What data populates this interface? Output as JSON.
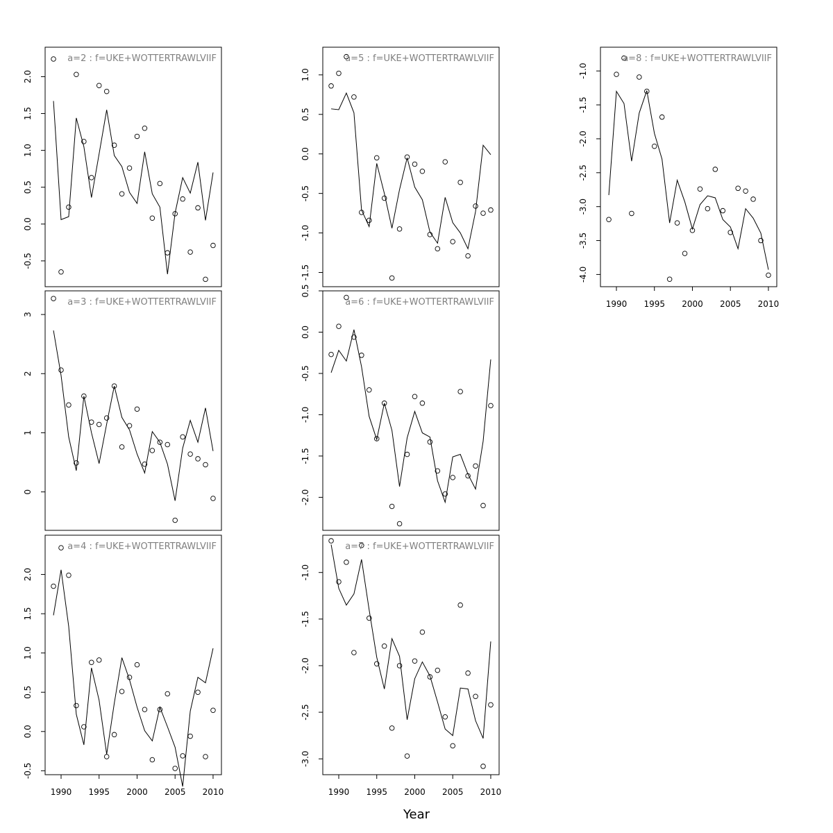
{
  "figure": {
    "xlabel": "Year"
  },
  "chart_data": [
    {
      "type": "line",
      "title": "a=2 : f=UKE+WOTTERTRAWLVIIF",
      "x": [
        1989,
        1990,
        1991,
        1992,
        1993,
        1994,
        1995,
        1996,
        1997,
        1998,
        1999,
        2000,
        2001,
        2002,
        2003,
        2004,
        2005,
        2006,
        2007,
        2008,
        2009,
        2010
      ],
      "series": [
        {
          "values": [
            1.67,
            0.06,
            0.1,
            1.44,
            1.05,
            0.36,
            0.95,
            1.55,
            0.93,
            0.78,
            0.43,
            0.28,
            0.98,
            0.41,
            0.23,
            -0.68,
            0.15,
            0.63,
            0.42,
            0.84,
            0.05,
            0.7
          ]
        },
        {
          "values": [
            2.24,
            -0.65,
            0.23,
            2.03,
            1.12,
            0.63,
            1.88,
            1.8,
            1.07,
            0.41,
            0.76,
            1.19,
            1.3,
            0.08,
            0.55,
            -0.39,
            0.14,
            0.34,
            -0.38,
            0.22,
            -0.75,
            -0.29
          ]
        }
      ],
      "ylim": [
        -0.85,
        2.4
      ],
      "yticks": [
        "-0.5",
        "0.0",
        "0.5",
        "1.0",
        "1.5",
        "2.0"
      ],
      "xticks": [],
      "xlabel": "",
      "ylabel": ""
    },
    {
      "type": "line",
      "title": "a=3 : f=UKE+WOTTERTRAWLVIIF",
      "x": [
        1989,
        1990,
        1991,
        1992,
        1993,
        1994,
        1995,
        1996,
        1997,
        1998,
        1999,
        2000,
        2001,
        2002,
        2003,
        2004,
        2005,
        2006,
        2007,
        2008,
        2009,
        2010
      ],
      "series": [
        {
          "values": [
            2.73,
            1.97,
            0.93,
            0.36,
            1.62,
            1.0,
            0.48,
            1.15,
            1.79,
            1.26,
            1.05,
            0.64,
            0.32,
            1.02,
            0.84,
            0.47,
            -0.15,
            0.74,
            1.21,
            0.84,
            1.42,
            0.69
          ]
        },
        {
          "values": [
            3.27,
            2.06,
            1.47,
            0.49,
            1.62,
            1.18,
            1.14,
            1.25,
            1.79,
            0.76,
            1.12,
            1.4,
            0.47,
            0.7,
            0.84,
            0.8,
            -0.48,
            0.93,
            0.64,
            0.56,
            0.46,
            -0.11
          ]
        }
      ],
      "ylim": [
        -0.65,
        3.4
      ],
      "yticks": [
        "0",
        "1",
        "2",
        "3"
      ],
      "xticks": [],
      "xlabel": "",
      "ylabel": ""
    },
    {
      "type": "line",
      "title": "a=4 : f=UKE+WOTTERTRAWLVIIF",
      "x": [
        1989,
        1990,
        1991,
        1992,
        1993,
        1994,
        1995,
        1996,
        1997,
        1998,
        1999,
        2000,
        2001,
        2002,
        2003,
        2004,
        2005,
        2006,
        2007,
        2008,
        2009,
        2010
      ],
      "series": [
        {
          "values": [
            1.48,
            2.06,
            1.34,
            0.22,
            -0.17,
            0.81,
            0.4,
            -0.29,
            0.36,
            0.94,
            0.66,
            0.31,
            0.01,
            -0.12,
            0.31,
            0.06,
            -0.2,
            -0.7,
            0.26,
            0.69,
            0.62,
            1.06
          ]
        },
        {
          "values": [
            1.85,
            2.34,
            1.99,
            0.33,
            0.06,
            0.88,
            0.91,
            -0.32,
            -0.04,
            0.51,
            0.69,
            0.85,
            0.28,
            -0.36,
            0.28,
            0.48,
            -0.47,
            -0.31,
            -0.06,
            0.5,
            -0.32,
            0.27
          ]
        }
      ],
      "ylim": [
        -0.55,
        2.5
      ],
      "yticks": [
        "-0.5",
        "0.0",
        "0.5",
        "1.0",
        "1.5",
        "2.0"
      ],
      "xticks": [
        "1990",
        "1995",
        "2000",
        "2005",
        "2010"
      ],
      "xlabel": "",
      "ylabel": ""
    },
    {
      "type": "line",
      "title": "a=5 : f=UKE+WOTTERTRAWLVIIF",
      "x": [
        1989,
        1990,
        1991,
        1992,
        1993,
        1994,
        1995,
        1996,
        1997,
        1998,
        1999,
        2000,
        2001,
        2002,
        2003,
        2004,
        2005,
        2006,
        2007,
        2008,
        2009,
        2010
      ],
      "series": [
        {
          "values": [
            0.57,
            0.56,
            0.77,
            0.52,
            -0.71,
            -0.92,
            -0.12,
            -0.5,
            -0.94,
            -0.45,
            -0.05,
            -0.42,
            -0.58,
            -0.99,
            -1.13,
            -0.55,
            -0.87,
            -1.0,
            -1.2,
            -0.73,
            0.11,
            -0.01
          ]
        },
        {
          "values": [
            0.86,
            1.02,
            1.23,
            0.72,
            -0.74,
            -0.84,
            -0.05,
            -0.56,
            -1.57,
            -0.95,
            -0.04,
            -0.13,
            -0.22,
            -1.02,
            -1.2,
            -0.1,
            -1.11,
            -0.36,
            -1.29,
            -0.66,
            -0.75,
            -0.71
          ]
        }
      ],
      "ylim": [
        -1.68,
        1.35
      ],
      "yticks": [
        "-1.5",
        "-1.0",
        "-0.5",
        "0.0",
        "0.5",
        "1.0"
      ],
      "xticks": [],
      "xlabel": "",
      "ylabel": ""
    },
    {
      "type": "line",
      "title": "a=6 : f=UKE+WOTTERTRAWLVIIF",
      "x": [
        1989,
        1990,
        1991,
        1992,
        1993,
        1994,
        1995,
        1996,
        1997,
        1998,
        1999,
        2000,
        2001,
        2002,
        2003,
        2004,
        2005,
        2006,
        2007,
        2008,
        2009,
        2010
      ],
      "series": [
        {
          "values": [
            -0.49,
            -0.22,
            -0.35,
            0.03,
            -0.42,
            -1.02,
            -1.3,
            -0.86,
            -1.19,
            -1.87,
            -1.28,
            -0.96,
            -1.22,
            -1.27,
            -1.8,
            -2.06,
            -1.51,
            -1.48,
            -1.72,
            -1.9,
            -1.32,
            -0.33
          ]
        },
        {
          "values": [
            -0.27,
            0.07,
            0.42,
            -0.06,
            -0.28,
            -0.7,
            -1.29,
            -0.86,
            -2.11,
            -2.32,
            -1.48,
            -0.78,
            -0.86,
            -1.33,
            -1.68,
            -1.96,
            -1.76,
            -0.72,
            -1.74,
            -1.62,
            -2.1,
            -0.89
          ]
        }
      ],
      "ylim": [
        -2.4,
        0.5
      ],
      "yticks": [
        "-2.0",
        "-1.5",
        "-1.0",
        "-0.5",
        "0.0",
        "0.5"
      ],
      "xticks": [],
      "xlabel": "",
      "ylabel": ""
    },
    {
      "type": "line",
      "title": "a=7 : f=UKE+WOTTERTRAWLVIIF",
      "x": [
        1989,
        1990,
        1991,
        1992,
        1993,
        1994,
        1995,
        1996,
        1997,
        1998,
        1999,
        2000,
        2001,
        2002,
        2003,
        2004,
        2005,
        2006,
        2007,
        2008,
        2009,
        2010
      ],
      "series": [
        {
          "values": [
            -0.7,
            -1.17,
            -1.35,
            -1.23,
            -0.86,
            -1.4,
            -1.91,
            -2.25,
            -1.71,
            -1.9,
            -2.58,
            -2.14,
            -1.96,
            -2.11,
            -2.39,
            -2.68,
            -2.75,
            -2.24,
            -2.25,
            -2.59,
            -2.78,
            -1.74
          ]
        },
        {
          "values": [
            -0.66,
            -1.1,
            -0.89,
            -1.86,
            -0.71,
            -1.49,
            -1.98,
            -1.79,
            -2.67,
            -2.0,
            -2.97,
            -1.95,
            -1.64,
            -2.12,
            -2.05,
            -2.55,
            -2.86,
            -1.35,
            -2.08,
            -2.33,
            -3.08,
            -2.42
          ]
        }
      ],
      "ylim": [
        -3.17,
        -0.6
      ],
      "yticks": [
        "-3.0",
        "-2.5",
        "-2.0",
        "-1.5",
        "-1.0"
      ],
      "xticks": [
        "1990",
        "1995",
        "2000",
        "2005",
        "2010"
      ],
      "xlabel": "",
      "ylabel": ""
    },
    {
      "type": "line",
      "title": "a=8 : f=UKE+WOTTERTRAWLVIIF",
      "x": [
        1989,
        1990,
        1991,
        1992,
        1993,
        1994,
        1995,
        1996,
        1997,
        1998,
        1999,
        2000,
        2001,
        2002,
        2003,
        2004,
        2005,
        2006,
        2007,
        2008,
        2009,
        2010
      ],
      "series": [
        {
          "values": [
            -2.83,
            -1.3,
            -1.48,
            -2.33,
            -1.62,
            -1.29,
            -1.92,
            -2.3,
            -3.24,
            -2.61,
            -2.93,
            -3.33,
            -2.97,
            -2.84,
            -2.87,
            -3.19,
            -3.3,
            -3.62,
            -3.03,
            -3.17,
            -3.39,
            -3.93
          ]
        },
        {
          "values": [
            -3.19,
            -1.05,
            -0.81,
            -3.1,
            -1.09,
            -1.3,
            -2.11,
            -1.68,
            -4.07,
            -3.24,
            -3.69,
            -3.35,
            -2.74,
            -3.03,
            -2.45,
            -3.06,
            -3.38,
            -2.73,
            -2.77,
            -2.89,
            -3.5,
            -4.01
          ]
        }
      ],
      "ylim": [
        -4.18,
        -0.65
      ],
      "yticks": [
        "-4.0",
        "-3.5",
        "-3.0",
        "-2.5",
        "-2.0",
        "-1.5",
        "-1.0"
      ],
      "xticks": [
        "1990",
        "1995",
        "2000",
        "2005",
        "2010"
      ],
      "xlabel": "",
      "ylabel": ""
    }
  ]
}
